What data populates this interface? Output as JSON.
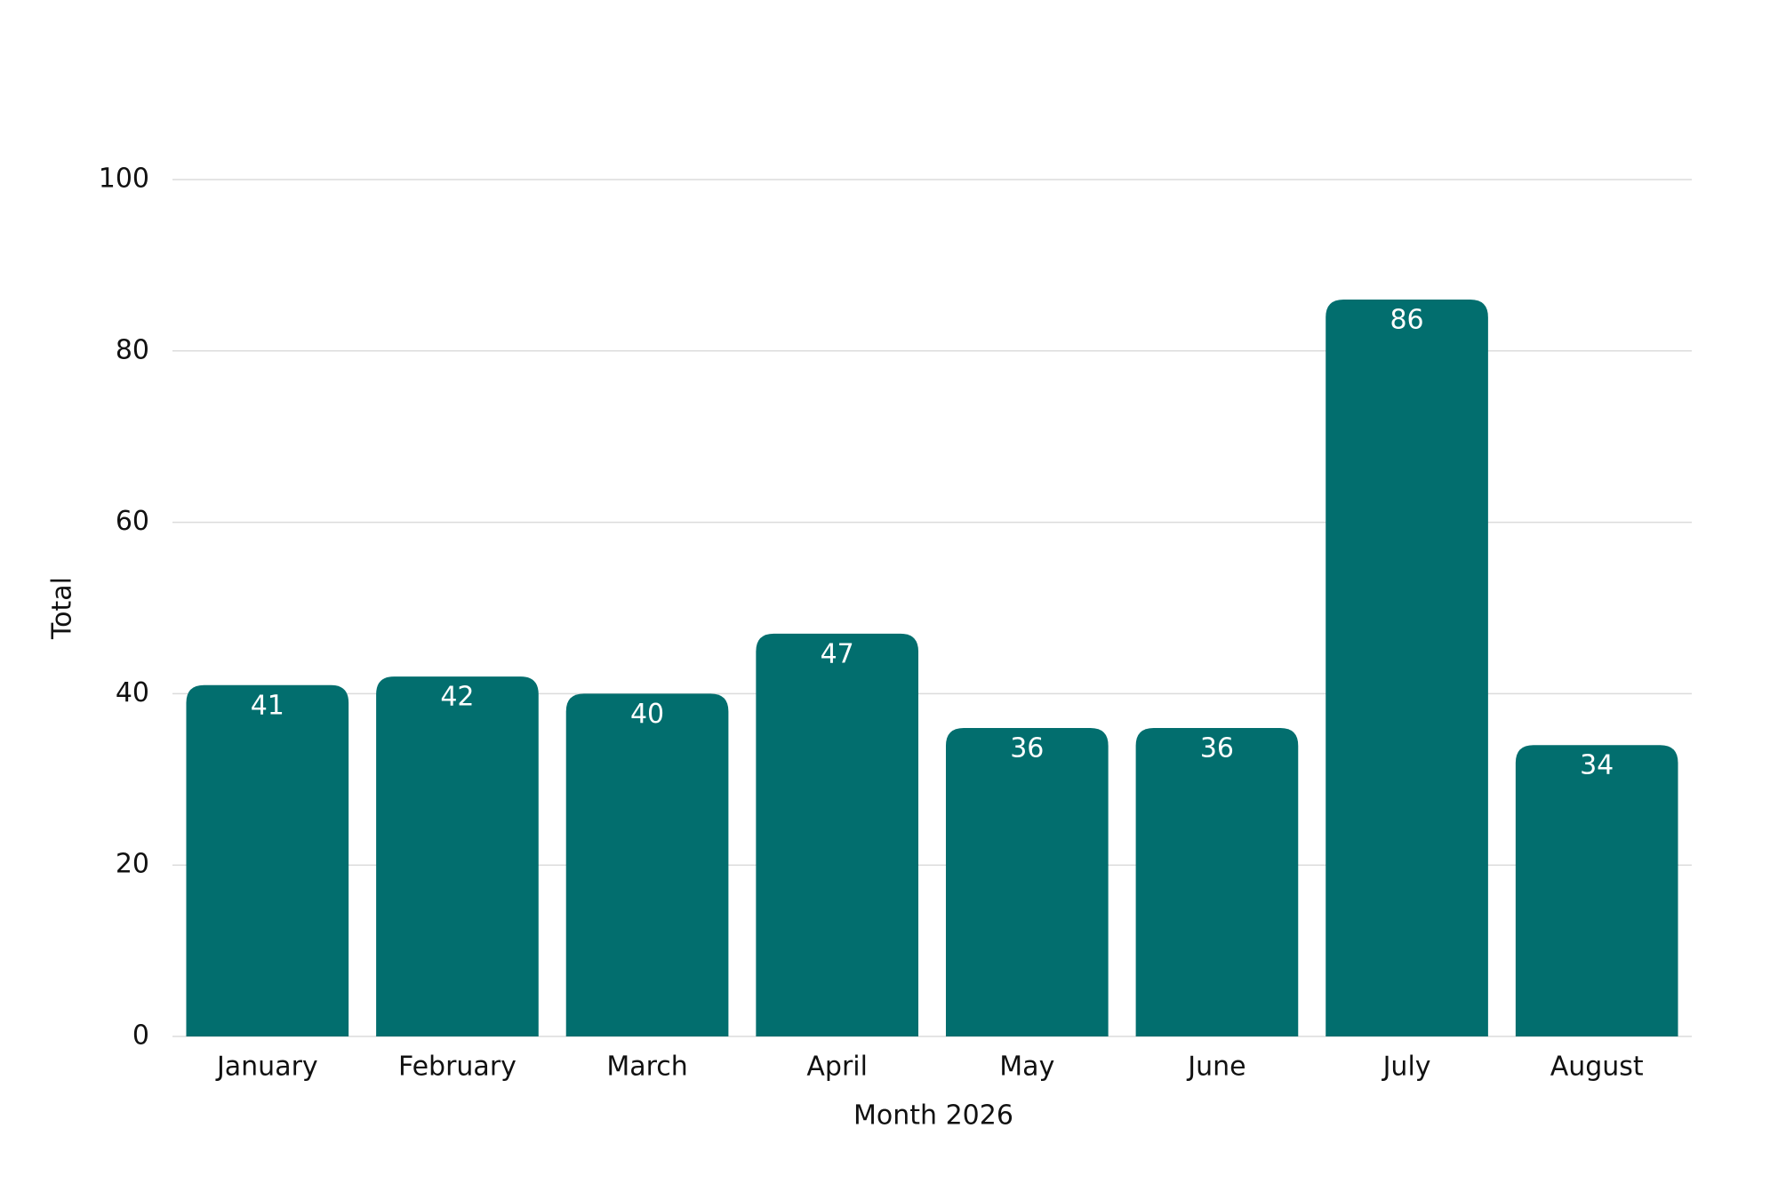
{
  "chart_data": {
    "type": "bar",
    "x_label": "Month 2026",
    "y_label": "Total",
    "categories": [
      "January",
      "February",
      "March",
      "April",
      "May",
      "June",
      "July",
      "August"
    ],
    "values": [
      41,
      42,
      40,
      47,
      36,
      36,
      86,
      34
    ],
    "color": "#026e6e",
    "ylim": [
      0,
      100
    ],
    "yticks": [
      0,
      20,
      40,
      60,
      80,
      100
    ],
    "grid": true
  }
}
